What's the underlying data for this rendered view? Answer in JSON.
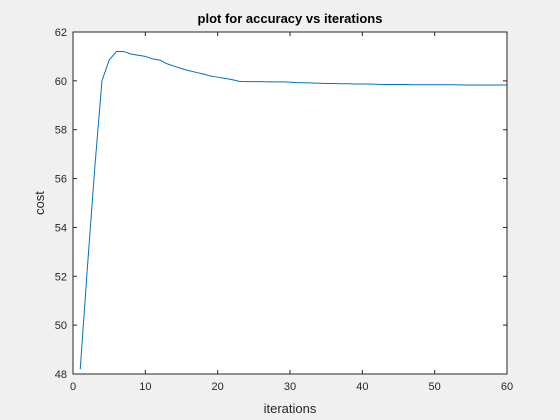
{
  "chart_data": {
    "type": "line",
    "title": "plot for accuracy vs iterations",
    "xlabel": "iterations",
    "ylabel": "cost",
    "xlim": [
      0,
      60
    ],
    "ylim": [
      48,
      62
    ],
    "x_ticks": [
      "0",
      "10",
      "20",
      "30",
      "40",
      "50",
      "60"
    ],
    "y_ticks": [
      "48",
      "50",
      "52",
      "54",
      "56",
      "58",
      "60",
      "62"
    ],
    "grid": false,
    "legend": "none",
    "series": [
      {
        "color": "#0072bd",
        "x": [
          1,
          2,
          3,
          4,
          5,
          6,
          7,
          8,
          9,
          10,
          11,
          12,
          13,
          14,
          15,
          16,
          17,
          18,
          19,
          20,
          21,
          22,
          23,
          24,
          25,
          26,
          27,
          28,
          29,
          30,
          31,
          32,
          33,
          34,
          35,
          36,
          37,
          38,
          39,
          40,
          41,
          42,
          43,
          44,
          45,
          46,
          47,
          48,
          49,
          50,
          51,
          52,
          53,
          54,
          55,
          56,
          57,
          58,
          59,
          60
        ],
        "y": [
          48.2,
          52.4,
          56.4,
          60.0,
          60.85,
          61.2,
          61.2,
          61.1,
          61.05,
          61.0,
          60.9,
          60.85,
          60.7,
          60.6,
          60.5,
          60.42,
          60.35,
          60.28,
          60.2,
          60.15,
          60.1,
          60.05,
          59.98,
          59.97,
          59.97,
          59.97,
          59.96,
          59.96,
          59.96,
          59.95,
          59.93,
          59.92,
          59.91,
          59.9,
          59.89,
          59.89,
          59.88,
          59.88,
          59.87,
          59.87,
          59.87,
          59.86,
          59.85,
          59.85,
          59.85,
          59.85,
          59.84,
          59.84,
          59.84,
          59.84,
          59.84,
          59.84,
          59.84,
          59.83,
          59.83,
          59.83,
          59.83,
          59.83,
          59.83,
          59.83
        ]
      }
    ]
  }
}
